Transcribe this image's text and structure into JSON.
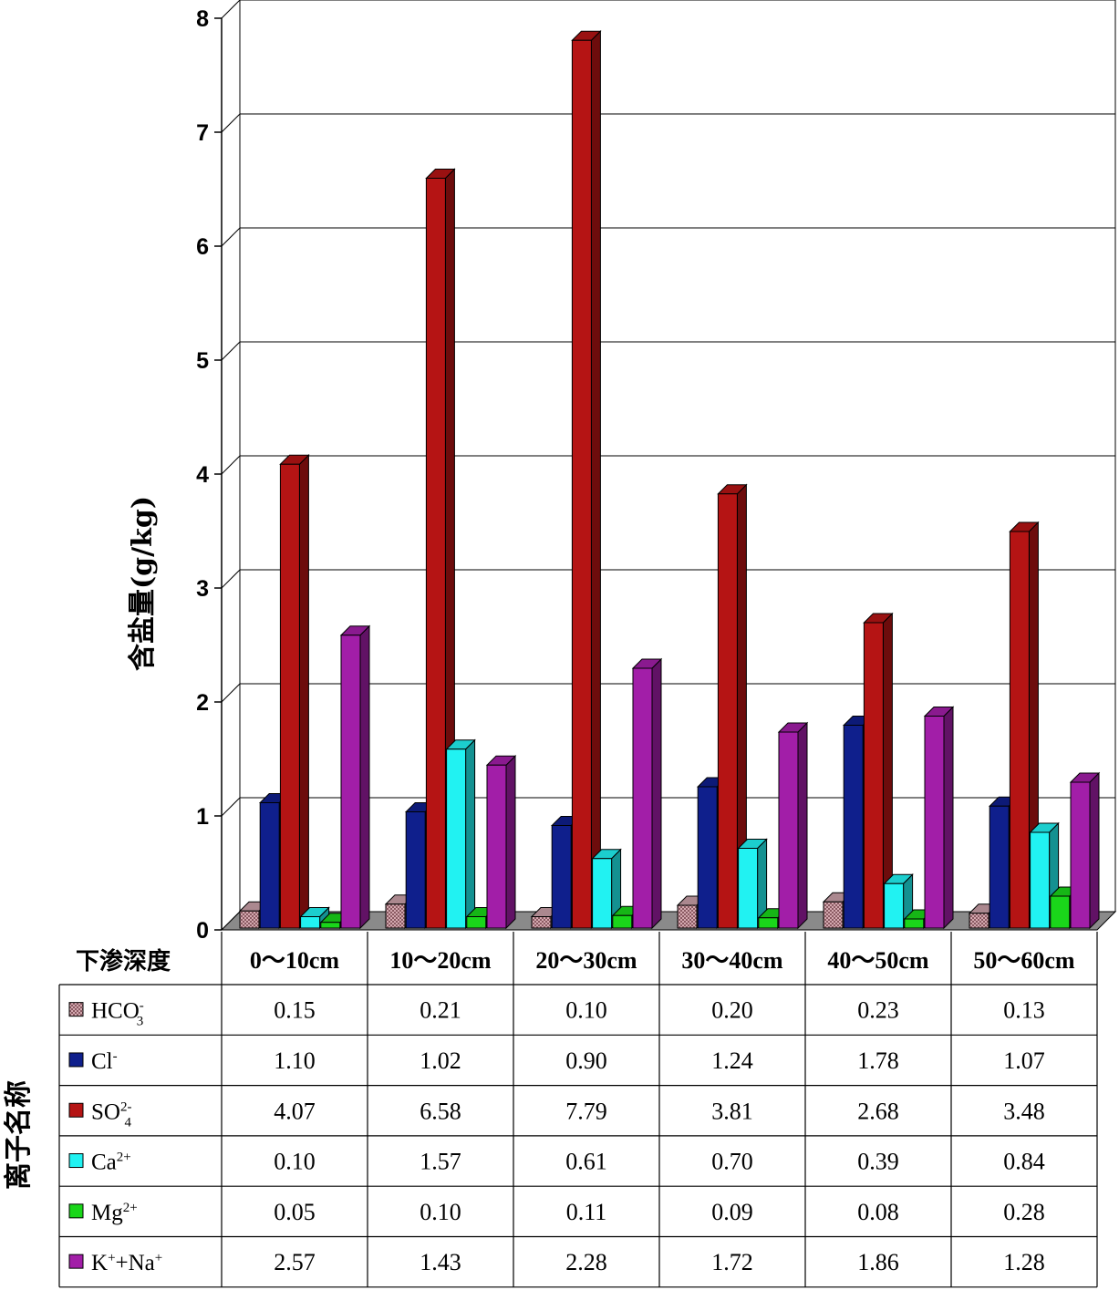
{
  "chart_data": {
    "type": "bar",
    "ylabel": "含盐量(g/kg)",
    "row_header": "离子名称",
    "category_header": "下渗深度",
    "ylim": [
      0,
      8
    ],
    "yticks": [
      "0",
      "1",
      "2",
      "3",
      "4",
      "5",
      "6",
      "7",
      "8"
    ],
    "grid": true,
    "legend": "data-table",
    "categories": [
      "0～10cm",
      "10～20cm",
      "20～30cm",
      "30～40cm",
      "40～50cm",
      "50～60cm"
    ],
    "series": [
      {
        "name": "HCO3-",
        "base": "HCO",
        "sub": "3",
        "sup": "-",
        "color": "#c9a0a8",
        "pattern": true,
        "values": [
          0.15,
          0.21,
          0.1,
          0.2,
          0.23,
          0.13
        ],
        "labels": [
          "0.15",
          "0.21",
          "0.10",
          "0.20",
          "0.23",
          "0.13"
        ]
      },
      {
        "name": "Cl-",
        "base": "Cl",
        "sub": "",
        "sup": "-",
        "color": "#0f1f8c",
        "pattern": false,
        "values": [
          1.1,
          1.02,
          0.9,
          1.24,
          1.78,
          1.07
        ],
        "labels": [
          "1.10",
          "1.02",
          "0.90",
          "1.24",
          "1.78",
          "1.07"
        ]
      },
      {
        "name": "SO42-",
        "base": "SO",
        "sub": "4",
        "sup": "2-",
        "color": "#b51414",
        "pattern": false,
        "values": [
          4.07,
          6.58,
          7.79,
          3.81,
          2.68,
          3.48
        ],
        "labels": [
          "4.07",
          "6.58",
          "7.79",
          "3.81",
          "2.68",
          "3.48"
        ]
      },
      {
        "name": "Ca2+",
        "base": "Ca",
        "sub": "",
        "sup": "2+",
        "color": "#21f2f2",
        "pattern": false,
        "values": [
          0.1,
          1.57,
          0.61,
          0.7,
          0.39,
          0.84
        ],
        "labels": [
          "0.10",
          "1.57",
          "0.61",
          "0.70",
          "0.39",
          "0.84"
        ]
      },
      {
        "name": "Mg2+",
        "base": "Mg",
        "sub": "",
        "sup": "2+",
        "color": "#1ad61a",
        "pattern": false,
        "values": [
          0.05,
          0.1,
          0.11,
          0.09,
          0.08,
          0.28
        ],
        "labels": [
          "0.05",
          "0.10",
          "0.11",
          "0.09",
          "0.08",
          "0.28"
        ]
      },
      {
        "name": "K++Na+",
        "base": "K",
        "sub": "",
        "sup": "+",
        "tail": "+Na",
        "tailsup": "+",
        "color": "#a21ea8",
        "pattern": false,
        "values": [
          2.57,
          1.43,
          2.28,
          1.72,
          1.86,
          1.28
        ],
        "labels": [
          "2.57",
          "1.43",
          "2.28",
          "1.72",
          "1.86",
          "1.28"
        ]
      }
    ]
  }
}
